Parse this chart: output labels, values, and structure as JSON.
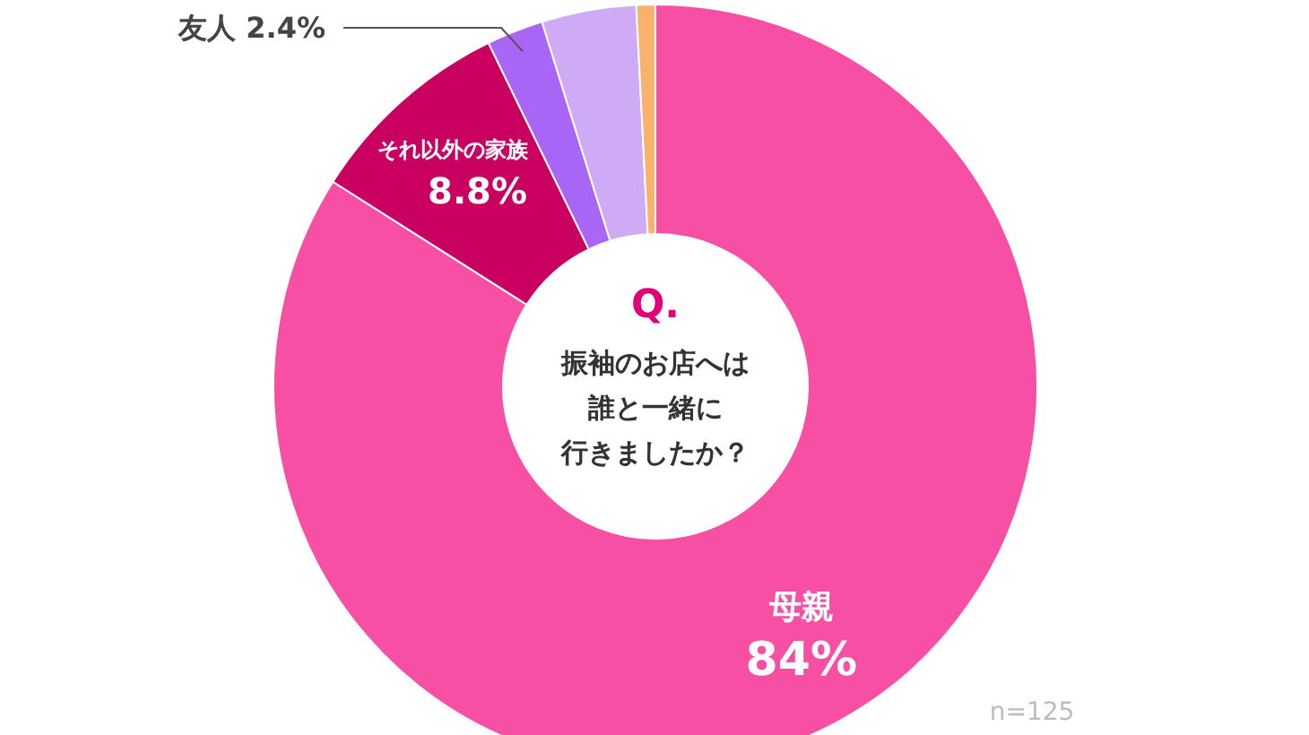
{
  "chart_data": {
    "type": "donut",
    "categories": [
      "母親",
      "それ以外の家族",
      "友人",
      null,
      null
    ],
    "values": [
      84,
      8.8,
      2.4,
      4.0,
      0.8
    ],
    "value_labels": [
      "84%",
      "8.8%",
      "2.4%",
      null,
      null
    ],
    "colors": [
      "#f74fa3",
      "#c9005f",
      "#a965f5",
      "#cfaaf5",
      "#f9b26b"
    ],
    "annotations": [
      "Q.",
      "振袖のお店へは",
      "誰と一緒に",
      "行きましたか？",
      "n=125"
    ]
  }
}
